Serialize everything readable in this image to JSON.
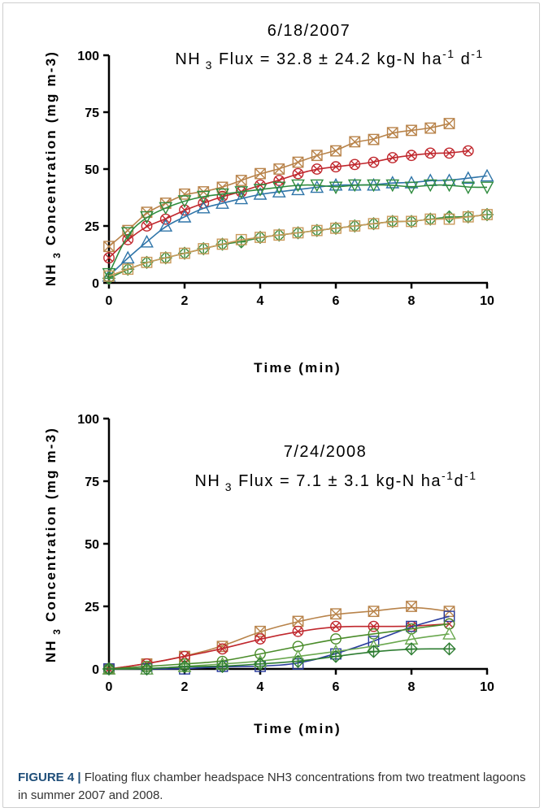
{
  "figure": {
    "caption_label": "FIGURE 4 |",
    "caption_text": "Floating flux chamber headspace NH3 concentrations from two treatment lagoons in summer 2007 and 2008."
  },
  "chart_data": [
    {
      "type": "scatter",
      "title": "6/18/2007",
      "subtitle": "NH3 Flux = 32.8 ± 24.2 kg-N ha-1 d-1",
      "xlabel": "Time (min)",
      "ylabel": "NH3 Concentration (mg m-3)",
      "xlim": [
        0,
        10
      ],
      "ylim": [
        0,
        100
      ],
      "xticks": [
        "0",
        "2",
        "4",
        "6",
        "8",
        "10"
      ],
      "yticks": [
        "0",
        "25",
        "50",
        "75",
        "100"
      ],
      "grid": false,
      "series": [
        {
          "marker": "square-x",
          "color": "#b8834a",
          "x": [
            0,
            0.5,
            1,
            1.5,
            2,
            2.5,
            3,
            3.5,
            4,
            4.5,
            5,
            5.5,
            6,
            6.5,
            7,
            7.5,
            8,
            8.5,
            9
          ],
          "y": [
            16,
            23,
            31,
            35,
            39,
            40,
            42,
            45,
            48,
            50,
            53,
            56,
            58,
            62,
            63,
            66,
            67,
            68,
            70
          ]
        },
        {
          "marker": "circle-x",
          "color": "#c0272d",
          "x": [
            0,
            0.5,
            1,
            1.5,
            2,
            2.5,
            3,
            3.5,
            4,
            4.5,
            5,
            5.5,
            6,
            6.5,
            7,
            7.5,
            8,
            8.5,
            9,
            9.5
          ],
          "y": [
            11,
            19,
            25,
            28,
            32,
            35,
            38,
            40,
            43,
            45,
            48,
            50,
            51,
            52,
            53,
            55,
            56,
            57,
            57,
            58
          ]
        },
        {
          "marker": "triangle",
          "color": "#2e74a8",
          "x": [
            0,
            0.5,
            1,
            1.5,
            2,
            2.5,
            3,
            3.5,
            4,
            4.5,
            5,
            5.5,
            6,
            6.5,
            7,
            7.5,
            8,
            8.5,
            9,
            9.5,
            10
          ],
          "y": [
            3,
            11,
            18,
            25,
            29,
            33,
            35,
            37,
            39,
            40,
            41,
            42,
            43,
            43,
            43,
            44,
            44,
            45,
            45,
            46,
            47
          ]
        },
        {
          "marker": "triangle-down",
          "color": "#2e8b3d",
          "x": [
            0,
            0.5,
            1,
            1.5,
            2,
            2.5,
            3,
            3.5,
            4,
            4.5,
            5,
            5.5,
            6,
            6.5,
            7,
            7.5,
            8,
            8.5,
            9,
            9.5,
            10
          ],
          "y": [
            4,
            22,
            29,
            33,
            36,
            38,
            39,
            40,
            41,
            42,
            43,
            43,
            42,
            43,
            43,
            43,
            42,
            43,
            43,
            42,
            42
          ]
        },
        {
          "marker": "diamond-plus",
          "color": "#3c8c3c",
          "x": [
            0,
            0.5,
            1,
            1.5,
            2,
            2.5,
            3,
            3.5,
            4,
            4.5,
            5,
            5.5,
            6,
            6.5,
            7,
            7.5,
            8,
            8.5,
            9,
            9.5,
            10
          ],
          "y": [
            2,
            6,
            9,
            11,
            13,
            15,
            17,
            18,
            20,
            21,
            22,
            23,
            24,
            25,
            26,
            27,
            27,
            28,
            29,
            29,
            30
          ]
        },
        {
          "marker": "square",
          "color": "#c99a5b",
          "x": [
            0,
            0.5,
            1,
            1.5,
            2,
            2.5,
            3,
            3.5,
            4,
            4.5,
            5,
            5.5,
            6,
            6.5,
            7,
            7.5,
            8,
            8.5,
            9,
            9.5,
            10
          ],
          "y": [
            3,
            6,
            9,
            11,
            13,
            15,
            17,
            19,
            20,
            21,
            22,
            23,
            24,
            25,
            26,
            27,
            27,
            28,
            28,
            29,
            30
          ]
        }
      ]
    },
    {
      "type": "scatter",
      "title": "7/24/2008",
      "subtitle": "NH3 Flux = 7.1 ± 3.1 kg-N ha-1d-1",
      "xlabel": "Time (min)",
      "ylabel": "NH3 Concentration (mg m-3)",
      "xlim": [
        0,
        10
      ],
      "ylim": [
        0,
        100
      ],
      "xticks": [
        "0",
        "2",
        "4",
        "6",
        "8",
        "10"
      ],
      "yticks": [
        "0",
        "25",
        "50",
        "75",
        "100"
      ],
      "grid": false,
      "series": [
        {
          "marker": "square-x",
          "color": "#b8834a",
          "x": [
            0,
            1,
            2,
            3,
            4,
            5,
            6,
            7,
            8,
            9
          ],
          "y": [
            0,
            2,
            5,
            9,
            15,
            19,
            22,
            23,
            25,
            23
          ]
        },
        {
          "marker": "circle-x",
          "color": "#c0272d",
          "x": [
            0,
            1,
            2,
            3,
            4,
            5,
            6,
            7,
            8,
            9
          ],
          "y": [
            0,
            2,
            5,
            8,
            12,
            15,
            17,
            17,
            17,
            18
          ]
        },
        {
          "marker": "square",
          "color": "#2a3d9e",
          "x": [
            0,
            1,
            2,
            3,
            4,
            5,
            6,
            7,
            8,
            9
          ],
          "y": [
            0,
            0,
            0,
            1,
            1,
            2,
            6,
            11,
            17,
            21
          ]
        },
        {
          "marker": "circle",
          "color": "#4a8c2a",
          "x": [
            0,
            1,
            2,
            3,
            4,
            5,
            6,
            7,
            8,
            9
          ],
          "y": [
            0,
            1,
            2,
            3,
            6,
            9,
            12,
            14,
            16,
            18
          ]
        },
        {
          "marker": "triangle",
          "color": "#6aa84f",
          "x": [
            0,
            1,
            2,
            3,
            4,
            5,
            6,
            7,
            8,
            9
          ],
          "y": [
            0,
            0,
            1,
            2,
            3,
            5,
            7,
            9,
            12,
            14
          ]
        },
        {
          "marker": "diamond-plus",
          "color": "#2e7d32",
          "x": [
            0,
            1,
            2,
            3,
            4,
            5,
            6,
            7,
            8,
            9
          ],
          "y": [
            0,
            0,
            1,
            1,
            2,
            3,
            5,
            7,
            8,
            8
          ]
        }
      ]
    }
  ]
}
